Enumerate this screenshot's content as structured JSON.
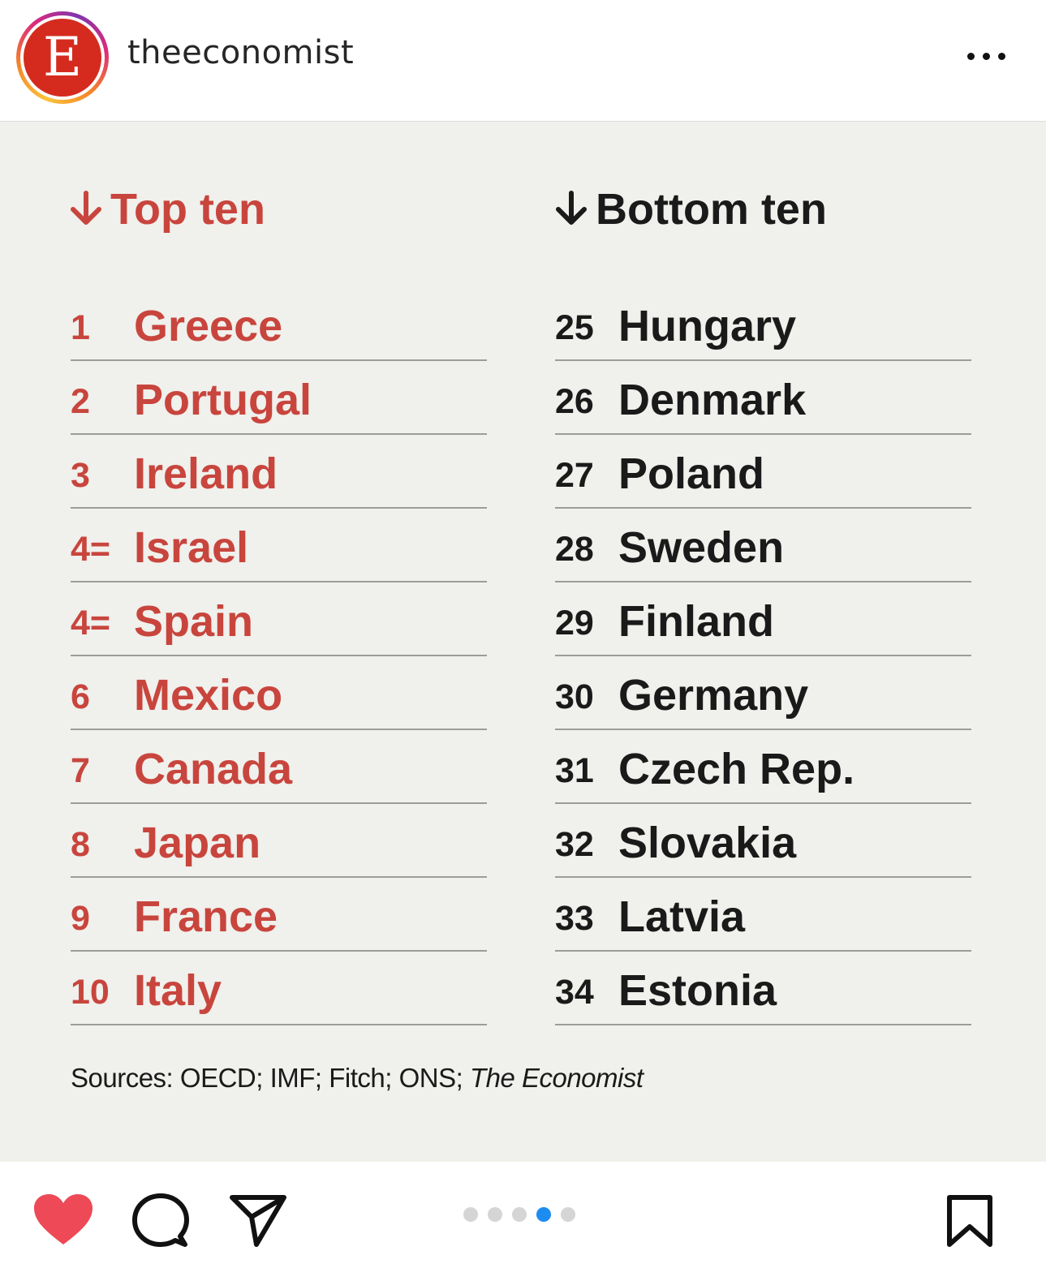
{
  "header": {
    "avatar_letter": "E",
    "username": "theeconomist"
  },
  "columns": {
    "top": {
      "title": "Top ten",
      "color": "#c8453d",
      "items": [
        {
          "rank": "1",
          "country": "Greece"
        },
        {
          "rank": "2",
          "country": "Portugal"
        },
        {
          "rank": "3",
          "country": "Ireland"
        },
        {
          "rank": "4=",
          "country": "Israel"
        },
        {
          "rank": "4=",
          "country": "Spain"
        },
        {
          "rank": "6",
          "country": "Mexico"
        },
        {
          "rank": "7",
          "country": "Canada"
        },
        {
          "rank": "8",
          "country": "Japan"
        },
        {
          "rank": "9",
          "country": "France"
        },
        {
          "rank": "10",
          "country": "Italy"
        }
      ]
    },
    "bottom": {
      "title": "Bottom ten",
      "color": "#1a1a1a",
      "items": [
        {
          "rank": "25",
          "country": "Hungary"
        },
        {
          "rank": "26",
          "country": "Denmark"
        },
        {
          "rank": "27",
          "country": "Poland"
        },
        {
          "rank": "28",
          "country": "Sweden"
        },
        {
          "rank": "29",
          "country": "Finland"
        },
        {
          "rank": "30",
          "country": "Germany"
        },
        {
          "rank": "31",
          "country": "Czech Rep."
        },
        {
          "rank": "32",
          "country": "Slovakia"
        },
        {
          "rank": "33",
          "country": "Latvia"
        },
        {
          "rank": "34",
          "country": "Estonia"
        }
      ]
    }
  },
  "sources": {
    "prefix": "Sources: OECD; IMF; Fitch; ONS; ",
    "publication": "The Economist"
  },
  "footer": {
    "icons": [
      "heart-icon",
      "comment-icon",
      "share-icon",
      "bookmark-icon"
    ],
    "carousel": {
      "total": 5,
      "active": 4
    }
  },
  "colors": {
    "accent": "#c8453d",
    "like": "#ed4956",
    "carousel_active": "#1d8cf0"
  }
}
